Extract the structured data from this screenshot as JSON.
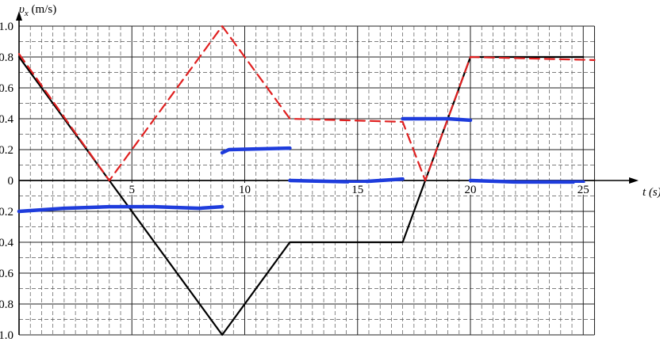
{
  "chart_data": {
    "type": "line",
    "ylabel_symbol": "υ",
    "ylabel_subscript": "x",
    "ylabel_unit": " (m/s)",
    "xlabel": "t (s)",
    "xlim": [
      0,
      25.5
    ],
    "ylim": [
      -1.0,
      1.0
    ],
    "x_ticks": [
      5,
      10,
      15,
      20,
      25
    ],
    "y_ticks": [
      1.0,
      0.8,
      0.6,
      0.4,
      0.2,
      0,
      -0.2,
      -0.4,
      -0.6,
      -0.8,
      -1.0
    ],
    "y_tick_labels": [
      "1.0",
      "0.8",
      "0.6",
      "0.4",
      "0.2",
      "0",
      "−0.2",
      "−0.4",
      "−0.6",
      "−0.8",
      "−1.0"
    ],
    "grid": true,
    "series": [
      {
        "color": "#000000",
        "style": "solid",
        "points": [
          [
            0,
            0.8
          ],
          [
            4,
            0
          ],
          [
            9,
            -1.0
          ],
          [
            12,
            -0.4
          ],
          [
            17,
            -0.4
          ],
          [
            18,
            0
          ],
          [
            20,
            0.8
          ],
          [
            25,
            0.8
          ]
        ]
      },
      {
        "color": "#e02020",
        "style": "dashed",
        "points": [
          [
            0,
            0.82
          ],
          [
            4,
            0
          ],
          [
            9,
            1.0
          ],
          [
            12,
            0.4
          ],
          [
            17,
            0.38
          ],
          [
            18,
            0
          ],
          [
            20,
            0.8
          ],
          [
            25.5,
            0.78
          ]
        ]
      },
      {
        "color": "#1e3cdc",
        "style": "solid",
        "segments": [
          [
            [
              0,
              -0.2
            ],
            [
              2,
              -0.18
            ],
            [
              4,
              -0.17
            ],
            [
              6,
              -0.17
            ],
            [
              8,
              -0.18
            ],
            [
              9,
              -0.17
            ]
          ],
          [
            [
              9,
              0.18
            ],
            [
              9.3,
              0.2
            ],
            [
              12,
              0.21
            ]
          ],
          [
            [
              12,
              0
            ],
            [
              15,
              -0.01
            ],
            [
              17,
              0.01
            ]
          ],
          [
            [
              17,
              0.4
            ],
            [
              19,
              0.4
            ],
            [
              20,
              0.39
            ]
          ],
          [
            [
              20,
              0
            ],
            [
              22,
              -0.01
            ],
            [
              25,
              -0.01
            ]
          ]
        ]
      }
    ]
  }
}
